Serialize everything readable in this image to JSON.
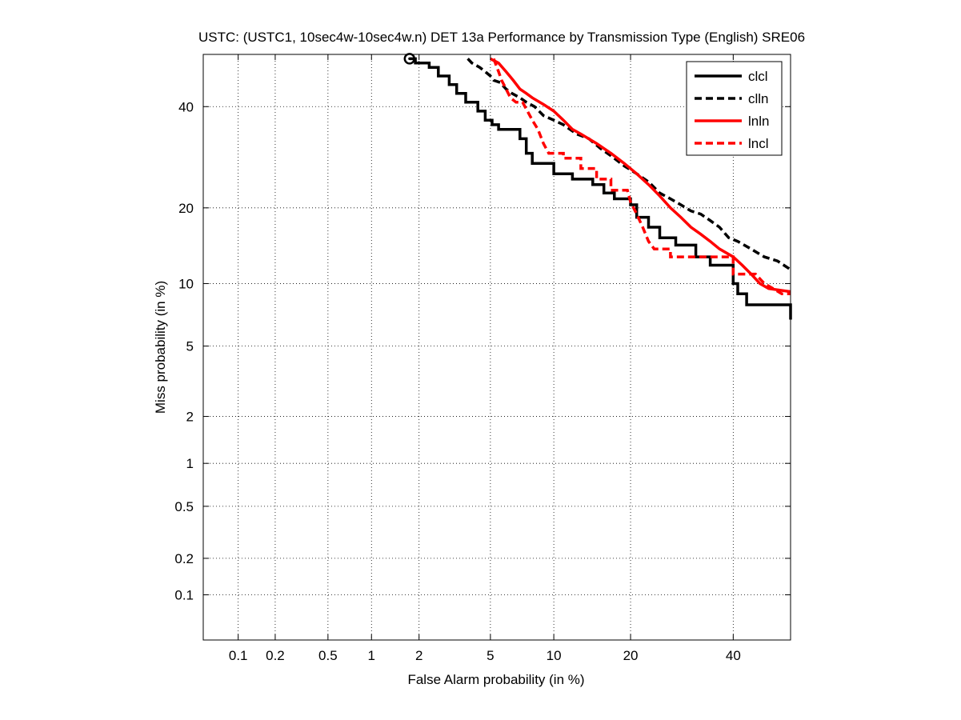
{
  "chart_data": {
    "type": "line",
    "title": "USTC: (USTC1, 10sec4w-10sec4w.n) DET 13a Performance by Transmission Type (English) SRE06",
    "xlabel": "False Alarm probability (in %)",
    "ylabel": "Miss probability (in %)",
    "x_scale": "probit",
    "y_scale": "probit",
    "xlim": [
      0.05,
      53
    ],
    "ylim": [
      0.04,
      52
    ],
    "x_ticks": [
      0.1,
      0.2,
      0.5,
      1,
      2,
      5,
      10,
      20,
      40
    ],
    "x_tick_labels": [
      "0.1",
      "0.2",
      "0.5",
      "1",
      "2",
      "5",
      "10",
      "20",
      "40"
    ],
    "y_ticks": [
      0.1,
      0.2,
      0.5,
      1,
      2,
      5,
      10,
      20,
      40
    ],
    "y_tick_labels": [
      "0.1",
      "0.2",
      "0.5",
      "1",
      "2",
      "5",
      "10",
      "20",
      "40"
    ],
    "grid": true,
    "legend_position": "top-right",
    "min_dcf_point": {
      "x": 1.75,
      "y": 51
    },
    "series": [
      {
        "name": "clcl",
        "color": "#000000",
        "dash": "solid",
        "points": [
          [
            1.75,
            51
          ],
          [
            1.9,
            51
          ],
          [
            1.9,
            50
          ],
          [
            2.3,
            50
          ],
          [
            2.3,
            49
          ],
          [
            2.6,
            49
          ],
          [
            2.6,
            47
          ],
          [
            3.0,
            47
          ],
          [
            3.0,
            45
          ],
          [
            3.3,
            45
          ],
          [
            3.3,
            43
          ],
          [
            3.7,
            43
          ],
          [
            3.7,
            41
          ],
          [
            4.3,
            41
          ],
          [
            4.3,
            39
          ],
          [
            4.7,
            39
          ],
          [
            4.7,
            37
          ],
          [
            5.1,
            37
          ],
          [
            5.1,
            36
          ],
          [
            5.5,
            36
          ],
          [
            5.5,
            35
          ],
          [
            7.0,
            35
          ],
          [
            7.0,
            33
          ],
          [
            7.5,
            33
          ],
          [
            7.5,
            30
          ],
          [
            8.0,
            30
          ],
          [
            8.0,
            28
          ],
          [
            10.0,
            28
          ],
          [
            10.0,
            26
          ],
          [
            12.0,
            26
          ],
          [
            12.0,
            25
          ],
          [
            14.5,
            25
          ],
          [
            14.5,
            24
          ],
          [
            16.0,
            24
          ],
          [
            16.0,
            22.5
          ],
          [
            17.5,
            22.5
          ],
          [
            17.5,
            21.5
          ],
          [
            20.0,
            21.5
          ],
          [
            20.0,
            20.5
          ],
          [
            21.0,
            20.5
          ],
          [
            21.0,
            18.5
          ],
          [
            23.0,
            18.5
          ],
          [
            23.0,
            17
          ],
          [
            25.0,
            17
          ],
          [
            25.0,
            15.5
          ],
          [
            28.0,
            15.5
          ],
          [
            28.0,
            14.5
          ],
          [
            32.0,
            14.5
          ],
          [
            32.0,
            13
          ],
          [
            35.0,
            13
          ],
          [
            35.0,
            12
          ],
          [
            40.0,
            12
          ],
          [
            40.0,
            10
          ],
          [
            41.0,
            10
          ],
          [
            41.0,
            9
          ],
          [
            43.0,
            9
          ],
          [
            43.0,
            8
          ],
          [
            53.0,
            8
          ],
          [
            53.0,
            6.8
          ]
        ]
      },
      {
        "name": "clln",
        "color": "#000000",
        "dash": "dashed",
        "points": [
          [
            3.8,
            51
          ],
          [
            4.0,
            50
          ],
          [
            4.4,
            49
          ],
          [
            4.7,
            48
          ],
          [
            5.0,
            47
          ],
          [
            5.2,
            46
          ],
          [
            5.6,
            45.5
          ],
          [
            6.0,
            44
          ],
          [
            6.4,
            43
          ],
          [
            7.0,
            42
          ],
          [
            7.5,
            41
          ],
          [
            8.2,
            40
          ],
          [
            9.0,
            38
          ],
          [
            10.0,
            37
          ],
          [
            11.0,
            36
          ],
          [
            12.5,
            34
          ],
          [
            14.0,
            33
          ],
          [
            15.5,
            31
          ],
          [
            17.0,
            29.5
          ],
          [
            19.0,
            27.5
          ],
          [
            21.0,
            26
          ],
          [
            23.0,
            24.5
          ],
          [
            25.0,
            22.5
          ],
          [
            27.0,
            21.5
          ],
          [
            29.0,
            20.5
          ],
          [
            31.0,
            19.5
          ],
          [
            33.0,
            19
          ],
          [
            35.0,
            18
          ],
          [
            37.0,
            17
          ],
          [
            39.0,
            15.5
          ],
          [
            41.0,
            15
          ],
          [
            44.0,
            14
          ],
          [
            47.0,
            13
          ],
          [
            50.0,
            12.5
          ],
          [
            53.0,
            11.5
          ]
        ]
      },
      {
        "name": "lnln",
        "color": "#ff0000",
        "dash": "solid",
        "points": [
          [
            5.0,
            51
          ],
          [
            5.5,
            50
          ],
          [
            6.0,
            48
          ],
          [
            6.5,
            46
          ],
          [
            7.0,
            44
          ],
          [
            7.5,
            43
          ],
          [
            8.0,
            42
          ],
          [
            9.0,
            40.5
          ],
          [
            10.0,
            39
          ],
          [
            11.0,
            37
          ],
          [
            12.0,
            35
          ],
          [
            13.0,
            34
          ],
          [
            15.0,
            32
          ],
          [
            17.0,
            30
          ],
          [
            19.0,
            28
          ],
          [
            21.0,
            26
          ],
          [
            23.0,
            24
          ],
          [
            25.0,
            22
          ],
          [
            27.0,
            20
          ],
          [
            29.0,
            18.5
          ],
          [
            31.0,
            17
          ],
          [
            33.0,
            16
          ],
          [
            35.0,
            15
          ],
          [
            37.0,
            14
          ],
          [
            40.0,
            13
          ],
          [
            42.0,
            12
          ],
          [
            44.0,
            11
          ],
          [
            46.0,
            10
          ],
          [
            48.0,
            9.5
          ],
          [
            53.0,
            9.2
          ]
        ]
      },
      {
        "name": "lncl",
        "color": "#ff0000",
        "dash": "dashed",
        "points": [
          [
            5.2,
            51
          ],
          [
            5.5,
            48
          ],
          [
            5.7,
            46
          ],
          [
            6.0,
            44
          ],
          [
            6.3,
            42
          ],
          [
            6.7,
            41
          ],
          [
            7.2,
            41
          ],
          [
            7.6,
            39
          ],
          [
            8.0,
            37
          ],
          [
            8.5,
            35
          ],
          [
            9.0,
            32
          ],
          [
            9.5,
            30
          ],
          [
            11.0,
            30
          ],
          [
            11.0,
            29
          ],
          [
            13.0,
            29
          ],
          [
            13.0,
            27
          ],
          [
            15.0,
            27
          ],
          [
            15.0,
            25
          ],
          [
            17.0,
            25
          ],
          [
            17.0,
            23
          ],
          [
            19.5,
            23
          ],
          [
            20.0,
            21
          ],
          [
            21.0,
            19
          ],
          [
            22.0,
            17
          ],
          [
            23.0,
            15
          ],
          [
            24.0,
            14
          ],
          [
            27.0,
            14
          ],
          [
            27.0,
            13
          ],
          [
            40.0,
            13
          ],
          [
            40.0,
            11
          ],
          [
            45.0,
            11
          ],
          [
            47.0,
            10
          ],
          [
            49.0,
            9.5
          ],
          [
            51.0,
            9
          ],
          [
            53.0,
            9
          ]
        ]
      }
    ]
  }
}
